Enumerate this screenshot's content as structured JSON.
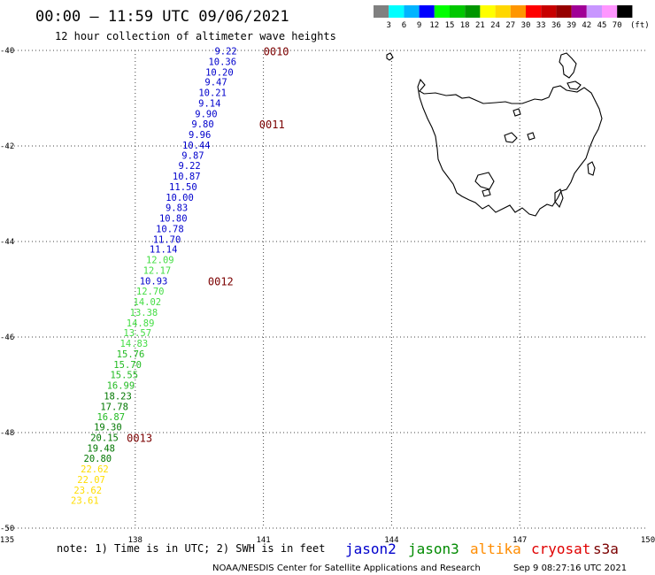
{
  "header": {
    "title": "00:00 – 11:59 UTC 09/06/2021",
    "subtitle": "12 hour collection of altimeter wave heights"
  },
  "color_scale": {
    "unit": "(ft)",
    "colors": [
      "#808080",
      "#00ffff",
      "#00b4ff",
      "#0000ff",
      "#00ff00",
      "#00c800",
      "#009600",
      "#ffff00",
      "#ffd700",
      "#ff9600",
      "#ff0000",
      "#c80000",
      "#960000",
      "#a00096",
      "#c896ff",
      "#ff96ff",
      "#000000"
    ],
    "ticks": [
      "3",
      "6",
      "9",
      "12",
      "15",
      "18",
      "21",
      "24",
      "27",
      "30",
      "33",
      "36",
      "39",
      "42",
      "45",
      "70"
    ]
  },
  "axes": {
    "x": {
      "min": 135,
      "max": 150,
      "ticks": [
        135,
        138,
        141,
        144,
        147,
        150
      ],
      "tick_labels": [
        "135",
        "138",
        "141",
        "144",
        "147",
        "150"
      ]
    },
    "y": {
      "min": -50,
      "max": -40,
      "ticks": [
        -40,
        -42,
        -44,
        -46,
        -48,
        -50
      ],
      "tick_labels": [
        "-40",
        "-42",
        "-44",
        "-46",
        "-48",
        "-50"
      ]
    }
  },
  "colors": {
    "jason2": "#0000cc",
    "jason3": "#008a00",
    "altika": "#ff8c00",
    "cryosat": "#e00000",
    "s3a": "#7b0000",
    "time": "#7b0000"
  },
  "chart_data": {
    "type": "scatter",
    "observations": [
      {
        "lon": 140.12,
        "lat": -40.01,
        "value": "9.22",
        "color": "#0000cc"
      },
      {
        "lon": 140.04,
        "lat": -40.23,
        "value": "10.36",
        "color": "#0000cc"
      },
      {
        "lon": 139.97,
        "lat": -40.45,
        "value": "10.20",
        "color": "#0000cc"
      },
      {
        "lon": 139.89,
        "lat": -40.66,
        "value": "9.47",
        "color": "#0000cc"
      },
      {
        "lon": 139.81,
        "lat": -40.88,
        "value": "10.21",
        "color": "#0000cc"
      },
      {
        "lon": 139.74,
        "lat": -41.1,
        "value": "9.14",
        "color": "#0000cc"
      },
      {
        "lon": 139.66,
        "lat": -41.32,
        "value": "9.90",
        "color": "#0000cc"
      },
      {
        "lon": 139.58,
        "lat": -41.54,
        "value": "9.80",
        "color": "#0000cc"
      },
      {
        "lon": 139.51,
        "lat": -41.76,
        "value": "9.96",
        "color": "#0000cc"
      },
      {
        "lon": 139.43,
        "lat": -41.98,
        "value": "10.44",
        "color": "#0000cc"
      },
      {
        "lon": 139.35,
        "lat": -42.19,
        "value": "9.87",
        "color": "#0000cc"
      },
      {
        "lon": 139.27,
        "lat": -42.41,
        "value": "9.22",
        "color": "#0000cc"
      },
      {
        "lon": 139.2,
        "lat": -42.63,
        "value": "10.87",
        "color": "#0000cc"
      },
      {
        "lon": 139.12,
        "lat": -42.85,
        "value": "11.50",
        "color": "#0000cc"
      },
      {
        "lon": 139.04,
        "lat": -43.07,
        "value": "10.00",
        "color": "#0000cc"
      },
      {
        "lon": 138.97,
        "lat": -43.29,
        "value": "9.83",
        "color": "#0000cc"
      },
      {
        "lon": 138.89,
        "lat": -43.51,
        "value": "10.80",
        "color": "#0000cc"
      },
      {
        "lon": 138.81,
        "lat": -43.73,
        "value": "10.78",
        "color": "#0000cc"
      },
      {
        "lon": 138.74,
        "lat": -43.95,
        "value": "11.70",
        "color": "#0000cc"
      },
      {
        "lon": 138.66,
        "lat": -44.16,
        "value": "11.14",
        "color": "#0000cc"
      },
      {
        "lon": 138.58,
        "lat": -44.38,
        "value": "12.09",
        "color": "#44dd44"
      },
      {
        "lon": 138.51,
        "lat": -44.6,
        "value": "12.17",
        "color": "#44dd44"
      },
      {
        "lon": 138.43,
        "lat": -44.82,
        "value": "10.93",
        "color": "#0000cc"
      },
      {
        "lon": 138.35,
        "lat": -45.04,
        "value": "12.70",
        "color": "#44dd44"
      },
      {
        "lon": 138.28,
        "lat": -45.26,
        "value": "14.02",
        "color": "#44dd44"
      },
      {
        "lon": 138.2,
        "lat": -45.48,
        "value": "13.38",
        "color": "#44dd44"
      },
      {
        "lon": 138.12,
        "lat": -45.7,
        "value": "14.89",
        "color": "#44dd44"
      },
      {
        "lon": 138.05,
        "lat": -45.91,
        "value": "13.57",
        "color": "#44dd44"
      },
      {
        "lon": 137.97,
        "lat": -46.13,
        "value": "14.83",
        "color": "#44dd44"
      },
      {
        "lon": 137.89,
        "lat": -46.35,
        "value": "15.76",
        "color": "#22bb22"
      },
      {
        "lon": 137.82,
        "lat": -46.57,
        "value": "15.70",
        "color": "#22bb22"
      },
      {
        "lon": 137.74,
        "lat": -46.79,
        "value": "15.55",
        "color": "#22bb22"
      },
      {
        "lon": 137.66,
        "lat": -47.01,
        "value": "16.99",
        "color": "#22bb22"
      },
      {
        "lon": 137.59,
        "lat": -47.23,
        "value": "18.23",
        "color": "#007700"
      },
      {
        "lon": 137.51,
        "lat": -47.45,
        "value": "17.78",
        "color": "#007700"
      },
      {
        "lon": 137.43,
        "lat": -47.67,
        "value": "16.87",
        "color": "#22bb22"
      },
      {
        "lon": 137.36,
        "lat": -47.88,
        "value": "19.30",
        "color": "#007700"
      },
      {
        "lon": 137.28,
        "lat": -48.1,
        "value": "20.15",
        "color": "#007700"
      },
      {
        "lon": 137.2,
        "lat": -48.32,
        "value": "19.48",
        "color": "#007700"
      },
      {
        "lon": 137.12,
        "lat": -48.54,
        "value": "20.80",
        "color": "#007700"
      },
      {
        "lon": 137.05,
        "lat": -48.76,
        "value": "22.62",
        "color": "#ffdd00"
      },
      {
        "lon": 136.97,
        "lat": -48.98,
        "value": "22.07",
        "color": "#ffdd00"
      },
      {
        "lon": 136.89,
        "lat": -49.2,
        "value": "23.62",
        "color": "#ffdd00"
      },
      {
        "lon": 136.82,
        "lat": -49.42,
        "value": "23.61",
        "color": "#ffdd00"
      }
    ],
    "time_labels": [
      {
        "lon": 141.3,
        "lat": -40.01,
        "text": "0010"
      },
      {
        "lon": 141.2,
        "lat": -41.54,
        "text": "0011"
      },
      {
        "lon": 140.0,
        "lat": -44.82,
        "text": "0012"
      },
      {
        "lon": 138.1,
        "lat": -48.1,
        "text": "0013"
      }
    ]
  },
  "footer": {
    "note": "note: 1) Time is in UTC; 2) SWH is in feet",
    "satellites": [
      {
        "name": "jason2",
        "color": "#0000cc"
      },
      {
        "name": "jason3",
        "color": "#008a00"
      },
      {
        "name": "altika",
        "color": "#ff8c00"
      },
      {
        "name": "cryosat",
        "color": "#e00000"
      },
      {
        "name": "s3a",
        "color": "#7b0000"
      }
    ],
    "credit": "NOAA/NESDIS Center for Satellite Applications and Research",
    "timestamp": "Sep  9 08:27:16 UTC 2021"
  }
}
